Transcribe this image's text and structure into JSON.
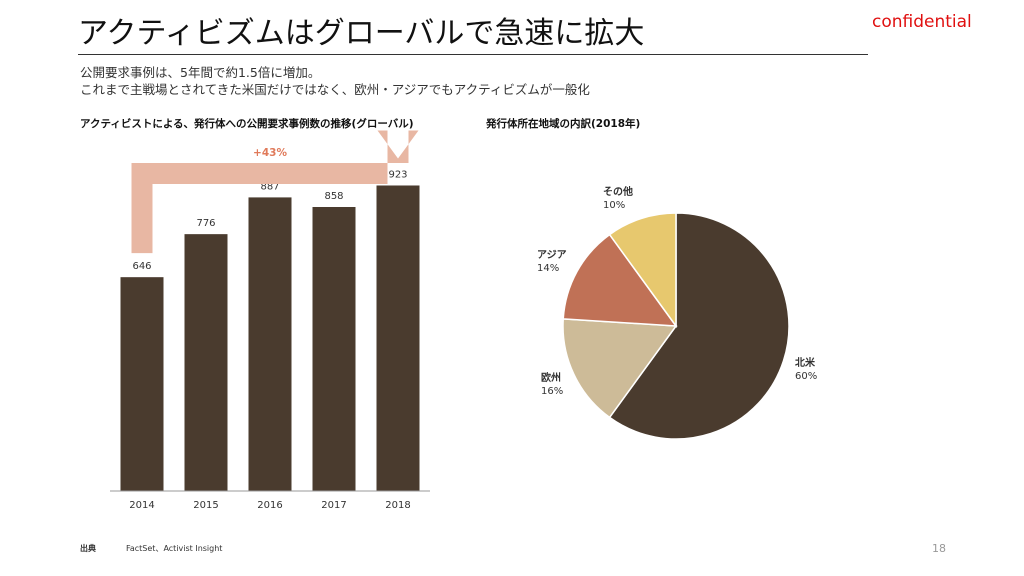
{
  "header": {
    "title": "アクティビズムはグローバルで急速に拡大",
    "confidential": "confidential",
    "subtitle_lines": [
      "公開要求事例は、5年間で約1.5倍に増加。",
      "これまで主戦場とされてきた米国だけではなく、欧州・アジアでもアクティビズムが一般化"
    ]
  },
  "chart_data": [
    {
      "type": "bar",
      "title": "アクティビストによる、発行体への公開要求事例数の推移(グローバル)",
      "categories": [
        "2014",
        "2015",
        "2016",
        "2017",
        "2018"
      ],
      "values": [
        646,
        776,
        887,
        858,
        923
      ],
      "ylim": [
        0,
        1000
      ],
      "annotation": "+43%",
      "bar_color": "#4a3b2e",
      "arrow_color": "#e8b7a3",
      "grid": false
    },
    {
      "type": "pie",
      "title": "発行体所在地域の内訳(2018年)",
      "labels": [
        "北米",
        "欧州",
        "アジア",
        "その他"
      ],
      "values": [
        60,
        16,
        14,
        10
      ],
      "value_labels": [
        "60%",
        "16%",
        "14%",
        "10%"
      ],
      "colors": [
        "#4a3b2e",
        "#cdbb98",
        "#c07156",
        "#e7c86e"
      ]
    }
  ],
  "footer": {
    "source_label": "出典",
    "source_text": "FactSet、Activist Insight",
    "page_number": "18"
  }
}
